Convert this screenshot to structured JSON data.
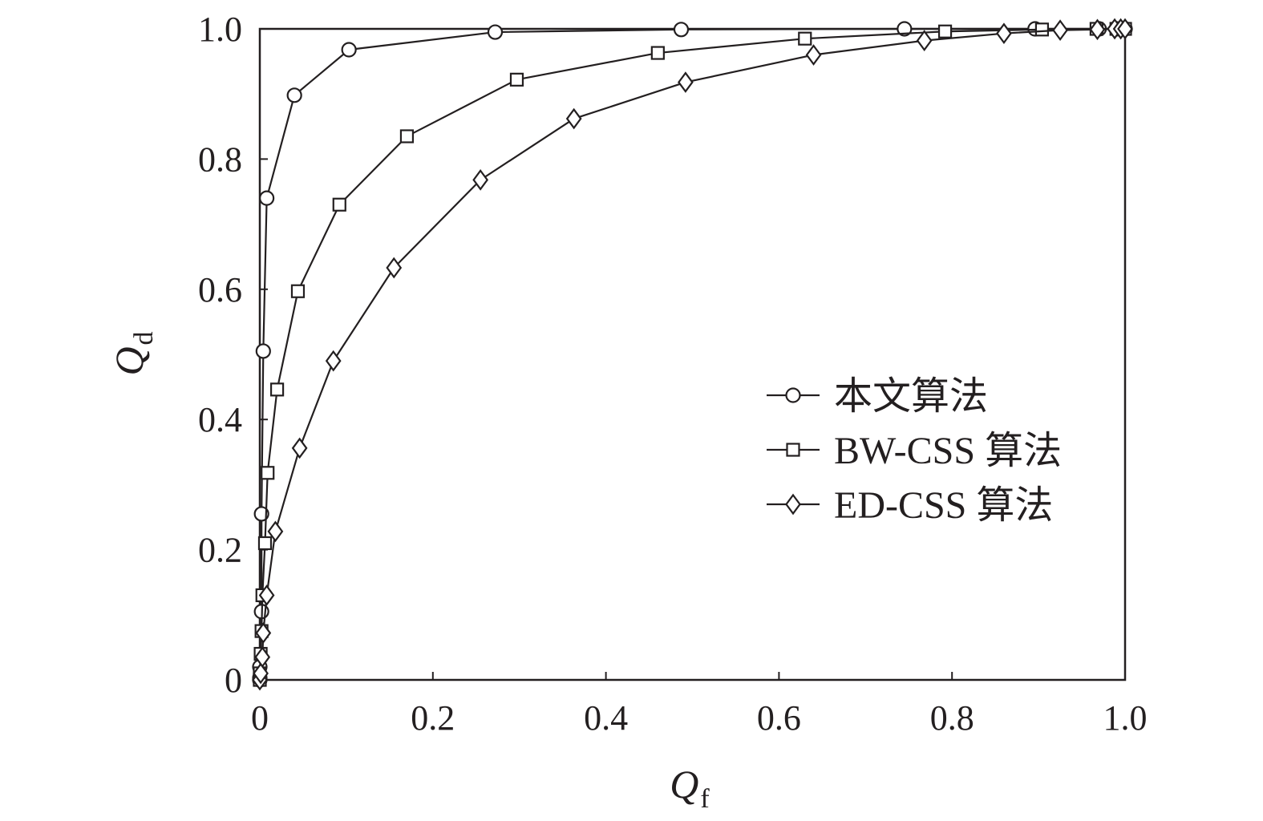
{
  "chart_data": {
    "type": "line",
    "title": "",
    "xlabel": {
      "main": "Q",
      "sub": "f"
    },
    "ylabel": {
      "main": "Q",
      "sub": "d"
    },
    "xlim": [
      0,
      1
    ],
    "ylim": [
      0,
      1
    ],
    "x_ticks": [
      0,
      0.2,
      0.4,
      0.6,
      0.8,
      1.0
    ],
    "x_tick_labels": [
      "0",
      "0.2",
      "0.4",
      "0.6",
      "0.8",
      "1.0"
    ],
    "y_ticks": [
      0,
      0.2,
      0.4,
      0.6,
      0.8,
      1.0
    ],
    "y_tick_labels": [
      "0",
      "0.2",
      "0.4",
      "0.6",
      "0.8",
      "1.0"
    ],
    "grid": false,
    "legend_position": "center-right",
    "line_color": "#231f20",
    "series": [
      {
        "name": "本文算法",
        "marker": "circle",
        "x": [
          0,
          0,
          0,
          0.002,
          0.002,
          0.004,
          0.008,
          0.04,
          0.103,
          0.272,
          0.487,
          0.745,
          0.896,
          0.97,
          0.99,
          1.0
        ],
        "y": [
          0,
          0.003,
          0.02,
          0.105,
          0.255,
          0.505,
          0.74,
          0.898,
          0.968,
          0.995,
          0.999,
          1.0,
          1.0,
          1.0,
          1.0,
          1.0
        ]
      },
      {
        "name": "BW-CSS 算法",
        "marker": "square",
        "x": [
          0,
          0,
          0.001,
          0.002,
          0.003,
          0.006,
          0.009,
          0.02,
          0.044,
          0.092,
          0.17,
          0.297,
          0.46,
          0.63,
          0.792,
          0.904,
          0.967,
          0.99,
          1.0
        ],
        "y": [
          0,
          0.01,
          0.04,
          0.075,
          0.13,
          0.21,
          0.318,
          0.446,
          0.597,
          0.73,
          0.835,
          0.922,
          0.963,
          0.985,
          0.996,
          0.999,
          1.0,
          1.0,
          1.0
        ],
        "x_note": "",
        "y_note": ""
      },
      {
        "name": "ED-CSS 算法",
        "marker": "diamond",
        "x": [
          0,
          0.001,
          0.003,
          0.004,
          0.008,
          0.018,
          0.046,
          0.085,
          0.155,
          0.255,
          0.363,
          0.492,
          0.64,
          0.768,
          0.86,
          0.925,
          0.968,
          0.988,
          0.995,
          1.0
        ],
        "y": [
          0,
          0.01,
          0.035,
          0.072,
          0.13,
          0.228,
          0.356,
          0.49,
          0.633,
          0.768,
          0.862,
          0.918,
          0.96,
          0.982,
          0.993,
          0.998,
          0.999,
          1.0,
          1.0,
          1.0
        ]
      }
    ]
  }
}
